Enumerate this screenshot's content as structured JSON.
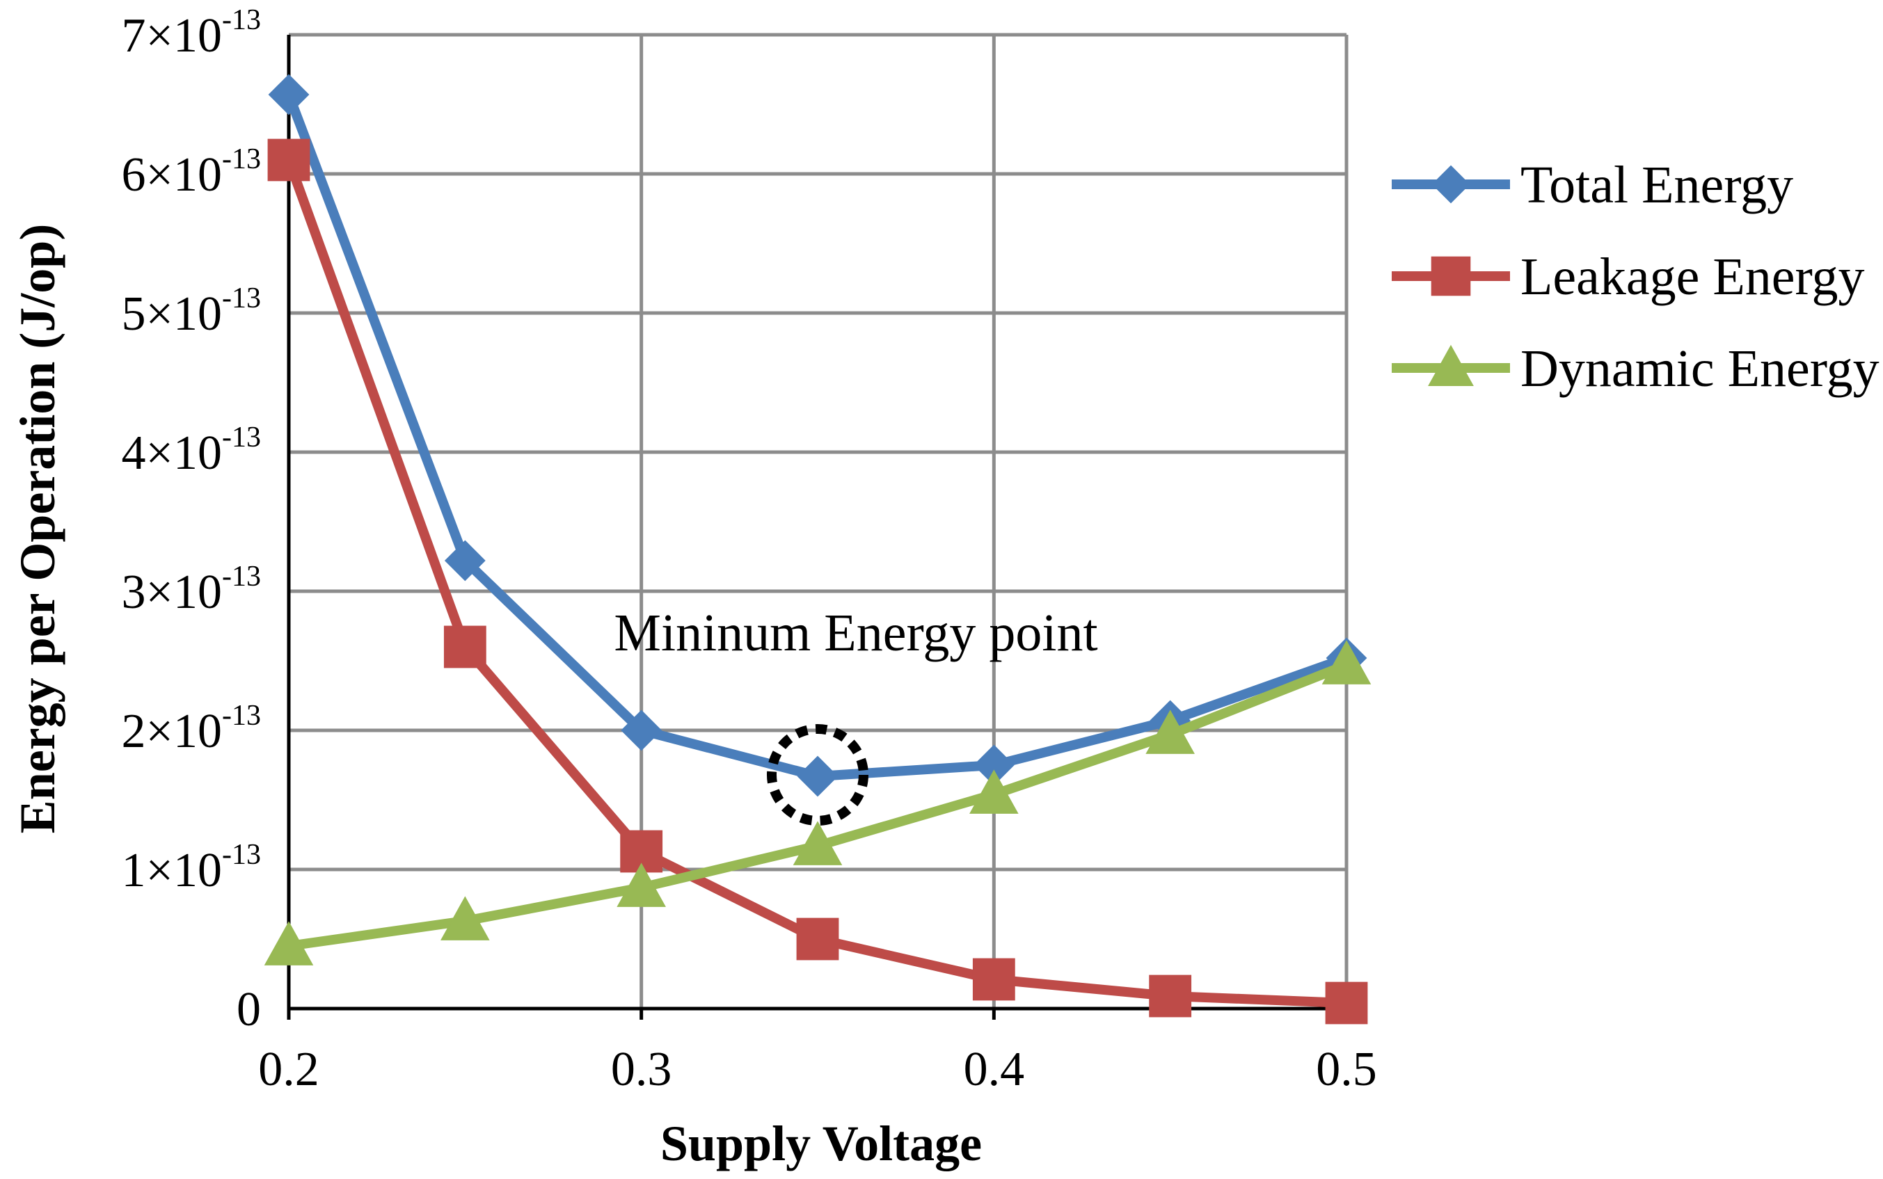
{
  "chart_data": {
    "type": "line",
    "title": "",
    "xlabel": "Supply Voltage",
    "ylabel": "Energy per Operation (J/op)",
    "x": [
      0.2,
      0.25,
      0.3,
      0.35,
      0.4,
      0.45,
      0.5
    ],
    "xlim": [
      0.2,
      0.5
    ],
    "ylim": [
      0,
      7e-13
    ],
    "x_ticks": [
      {
        "value": 0.2,
        "label": "0.2"
      },
      {
        "value": 0.3,
        "label": "0.3"
      },
      {
        "value": 0.4,
        "label": "0.4"
      },
      {
        "value": 0.5,
        "label": "0.5"
      }
    ],
    "y_ticks": [
      {
        "value": 0,
        "mantissa": "0",
        "exponent": ""
      },
      {
        "value": 1e-13,
        "mantissa": "1×10",
        "exponent": "-13"
      },
      {
        "value": 2e-13,
        "mantissa": "2×10",
        "exponent": "-13"
      },
      {
        "value": 3e-13,
        "mantissa": "3×10",
        "exponent": "-13"
      },
      {
        "value": 4e-13,
        "mantissa": "4×10",
        "exponent": "-13"
      },
      {
        "value": 5e-13,
        "mantissa": "5×10",
        "exponent": "-13"
      },
      {
        "value": 6e-13,
        "mantissa": "6×10",
        "exponent": "-13"
      },
      {
        "value": 7e-13,
        "mantissa": "7×10",
        "exponent": "-13"
      }
    ],
    "grid": true,
    "legend_position": "right",
    "series": [
      {
        "name": "Total Energy",
        "color": "#4a7ebb",
        "marker": "diamond",
        "values": [
          6.57e-13,
          3.22e-13,
          2e-13,
          1.67e-13,
          1.75e-13,
          2.07e-13,
          2.52e-13
        ]
      },
      {
        "name": "Leakage Energy",
        "color": "#be4b48",
        "marker": "square",
        "values": [
          6.1e-13,
          2.6e-13,
          1.13e-13,
          5e-14,
          2.1e-14,
          9e-15,
          4e-15
        ]
      },
      {
        "name": "Dynamic Energy",
        "color": "#98b954",
        "marker": "triangle",
        "values": [
          4.5e-14,
          6.3e-14,
          8.7e-14,
          1.17e-13,
          1.54e-13,
          1.97e-13,
          2.47e-13
        ]
      }
    ],
    "annotations": [
      {
        "text": "Mininum Energy point",
        "x": 0.35,
        "y": 1.67e-13,
        "style": "dotted-circle"
      }
    ]
  }
}
